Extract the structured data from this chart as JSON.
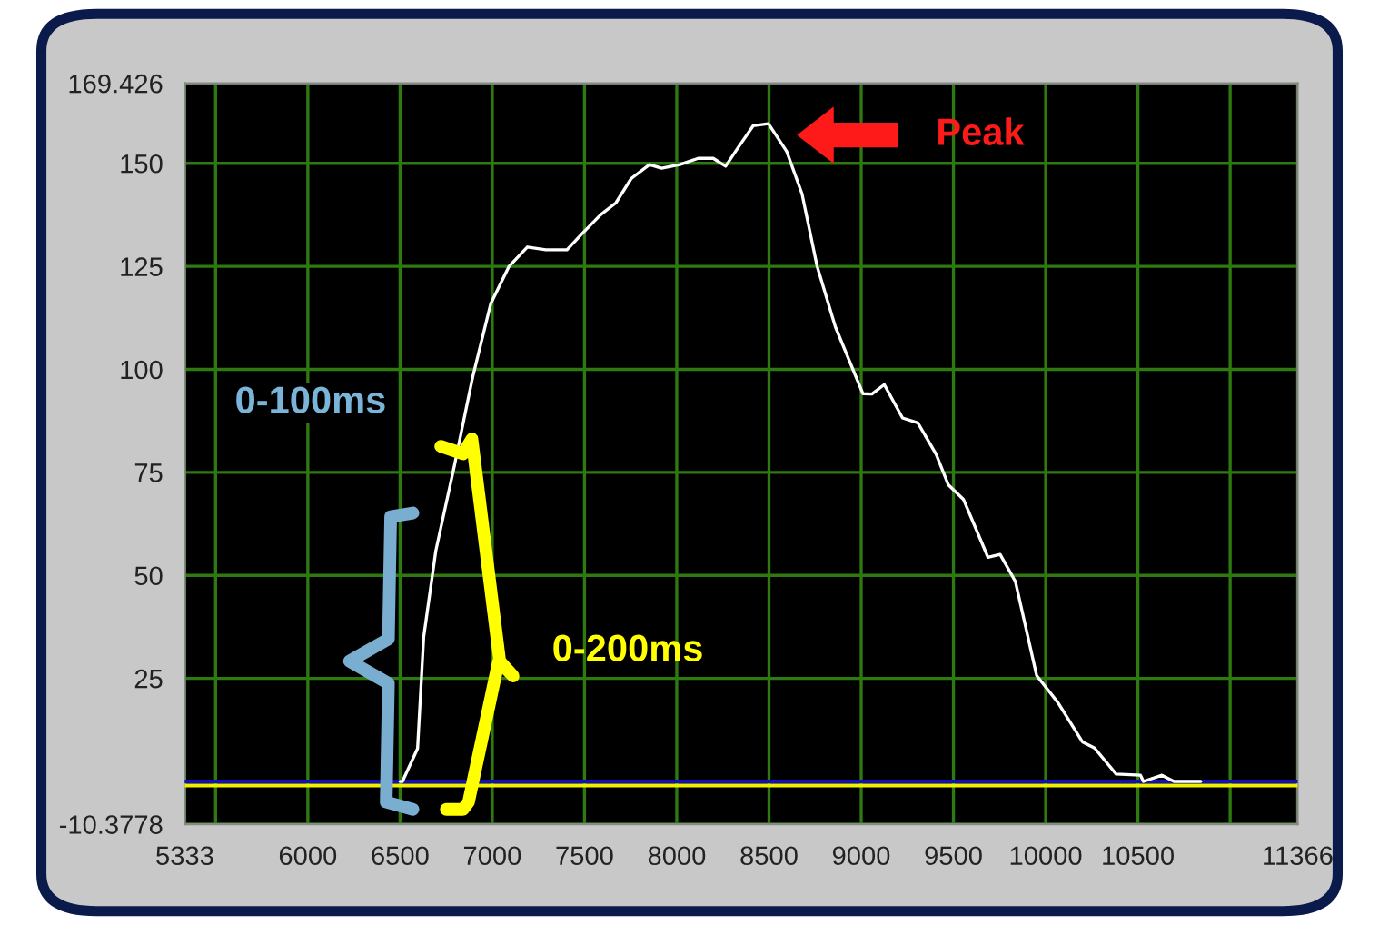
{
  "chart_data": {
    "type": "line",
    "series": [
      {
        "color": "#1010c0",
        "x": [
          5333,
          11366
        ],
        "values": [
          0,
          0
        ]
      },
      {
        "color": "#f0f000",
        "x": [
          5333,
          11366
        ],
        "values": [
          -1,
          -1
        ]
      },
      {
        "color": "#ffffff",
        "x": [
          6500,
          6513,
          6595,
          6628,
          6694,
          6794,
          6893,
          6992,
          7091,
          7190,
          7290,
          7405,
          7488,
          7587,
          7670,
          7753,
          7852,
          7918,
          8017,
          8116,
          8198,
          8265,
          8331,
          8414,
          8497,
          8596,
          8679,
          8761,
          8860,
          9009,
          9058,
          9125,
          9224,
          9307,
          9406,
          9472,
          9555,
          9687,
          9753,
          9836,
          9951,
          10067,
          10199,
          10265,
          10382,
          10514,
          10530,
          10630,
          10696,
          10841
        ],
        "values": [
          0,
          0,
          8,
          35,
          56,
          76.5,
          98,
          116,
          125,
          129.7,
          129,
          129,
          133,
          137.5,
          140.4,
          146.3,
          149.7,
          148.8,
          149.7,
          151.2,
          151.2,
          149.3,
          153.7,
          159.1,
          159.6,
          152.9,
          142.6,
          125,
          110.3,
          94.1,
          94,
          96.3,
          88.2,
          87,
          79.4,
          72,
          68.4,
          54.4,
          55.1,
          48.5,
          25.7,
          19.1,
          9.6,
          8.1,
          1.8,
          1.5,
          0,
          1.5,
          0,
          0
        ]
      }
    ],
    "xlim": [
      5333,
      11366
    ],
    "xticks": [
      5333,
      {
        "value": 5500,
        "label": null
      },
      6000,
      6500,
      7000,
      7500,
      8000,
      8500,
      9000,
      9500,
      10000,
      10500,
      {
        "value": 11000,
        "label": null
      },
      11366
    ],
    "ylim": [
      -10.3778,
      169.426
    ],
    "yticks": [
      -10.3778,
      {
        "value": 0,
        "label": null
      },
      25,
      50,
      75,
      100,
      125,
      150,
      169.426
    ],
    "grid": true,
    "line_style": "solid",
    "annotations": [
      "Peak",
      "0-100ms",
      "0-200ms"
    ]
  }
}
